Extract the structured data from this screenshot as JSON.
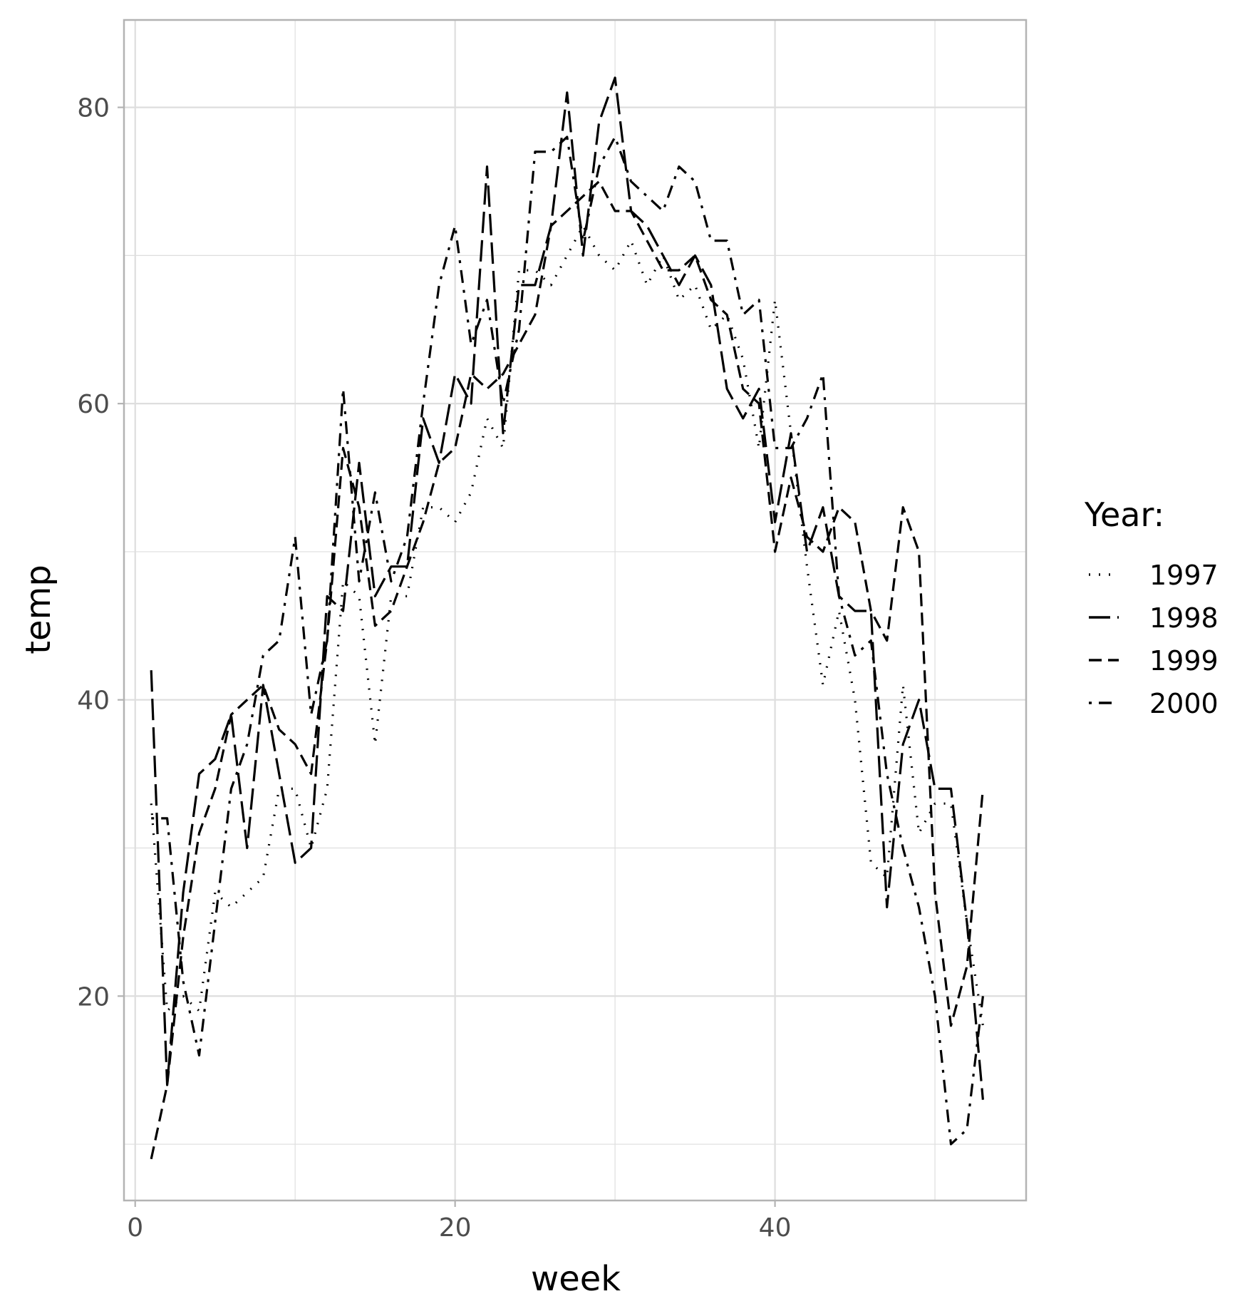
{
  "chart_data": {
    "type": "line",
    "xlabel": "week",
    "ylabel": "temp",
    "xlim": [
      -0.7,
      55.7
    ],
    "ylim": [
      6.2,
      85.9
    ],
    "x_ticks": [
      0,
      20,
      40
    ],
    "y_ticks": [
      20,
      40,
      60,
      80
    ],
    "grid": true,
    "legend": {
      "title": "Year:",
      "position": "right"
    },
    "colors": {
      "line": "#000000",
      "grid": "#dedede",
      "panel_border": "#b3b3b3",
      "tick_text": "#4d4d4d"
    },
    "series": [
      {
        "name": "1997",
        "linetype": "dotted",
        "x": [
          1,
          2,
          3,
          4,
          5,
          6,
          7,
          8,
          9,
          10,
          11,
          12,
          13,
          14,
          15,
          16,
          17,
          18,
          19,
          20,
          21,
          22,
          23,
          24,
          25,
          26,
          27,
          28,
          29,
          30,
          31,
          32,
          33,
          34,
          35,
          36,
          37,
          38,
          39,
          40,
          41,
          42,
          43,
          44,
          45,
          46,
          47,
          48,
          49,
          50,
          51,
          52,
          53
        ],
        "y": [
          33,
          19,
          20,
          19,
          27,
          26,
          27,
          28,
          34,
          34,
          30,
          34,
          48,
          47,
          37,
          47,
          47,
          53,
          53,
          52,
          54,
          59,
          57,
          69,
          69,
          68,
          70,
          72,
          70,
          69,
          71,
          68,
          70,
          67,
          68,
          65,
          66,
          63,
          57,
          67,
          58,
          49,
          41,
          46,
          40,
          29,
          28,
          41,
          31,
          33,
          33,
          25,
          18
        ]
      },
      {
        "name": "1998",
        "linetype": "longdash",
        "x": [
          1,
          2,
          3,
          4,
          5,
          6,
          7,
          8,
          9,
          10,
          11,
          12,
          13,
          14,
          15,
          16,
          17,
          18,
          19,
          20,
          21,
          22,
          23,
          24,
          25,
          26,
          27,
          28,
          29,
          30,
          31,
          32,
          33,
          34,
          35,
          36,
          37,
          38,
          39,
          40,
          41,
          42,
          43,
          44,
          45,
          46,
          47,
          48,
          49,
          50,
          51,
          52,
          53
        ],
        "y": [
          42,
          14,
          27,
          35,
          36,
          39,
          30,
          41,
          35,
          29,
          30,
          47,
          46,
          56,
          47,
          49,
          49,
          59,
          56,
          62,
          60,
          76,
          58,
          68,
          68,
          72,
          81,
          70,
          79,
          82,
          73,
          72,
          70,
          68,
          70,
          68,
          61,
          59,
          61,
          52,
          58,
          50,
          53,
          47,
          46,
          46,
          26,
          37,
          40,
          34,
          34,
          25,
          13
        ]
      },
      {
        "name": "1999",
        "linetype": "dashed",
        "x": [
          1,
          2,
          3,
          4,
          5,
          6,
          7,
          8,
          9,
          10,
          11,
          12,
          13,
          14,
          15,
          16,
          17,
          18,
          19,
          20,
          21,
          22,
          23,
          24,
          25,
          26,
          27,
          28,
          29,
          30,
          31,
          32,
          33,
          34,
          35,
          36,
          37,
          38,
          39,
          40,
          41,
          42,
          43,
          44,
          45,
          46,
          47,
          48,
          49,
          50,
          51,
          52,
          53
        ],
        "y": [
          9,
          14,
          24,
          31,
          34,
          39,
          40,
          41,
          38,
          37,
          35,
          44,
          57,
          53,
          45,
          46,
          49,
          52,
          56,
          57,
          62,
          61,
          62,
          64,
          66,
          72,
          73,
          74,
          75,
          73,
          73,
          71,
          69,
          69,
          70,
          67,
          66,
          61,
          60,
          50,
          55,
          51,
          50,
          53,
          52,
          46,
          44,
          53,
          50,
          27,
          18,
          22,
          34
        ]
      },
      {
        "name": "2000",
        "linetype": "twodash",
        "x": [
          1,
          2,
          3,
          4,
          5,
          6,
          7,
          8,
          9,
          10,
          11,
          12,
          13,
          14,
          15,
          16,
          17,
          18,
          19,
          20,
          21,
          22,
          23,
          24,
          25,
          26,
          27,
          28,
          29,
          30,
          31,
          32,
          33,
          34,
          35,
          36,
          37,
          38,
          39,
          40,
          41,
          42,
          43,
          44,
          45,
          46,
          47,
          48,
          49,
          50,
          51,
          52,
          53
        ],
        "y": [
          32,
          32,
          21,
          16,
          25,
          34,
          37,
          43,
          44,
          51,
          39,
          44,
          61,
          48,
          54,
          48,
          51,
          60,
          68,
          72,
          64,
          67,
          60,
          65,
          77,
          77,
          78,
          71,
          76,
          78,
          75,
          74,
          73,
          76,
          75,
          71,
          71,
          66,
          67,
          57,
          57,
          59,
          62,
          47,
          43,
          44,
          35,
          30,
          26,
          20,
          10,
          11,
          20
        ]
      }
    ]
  }
}
